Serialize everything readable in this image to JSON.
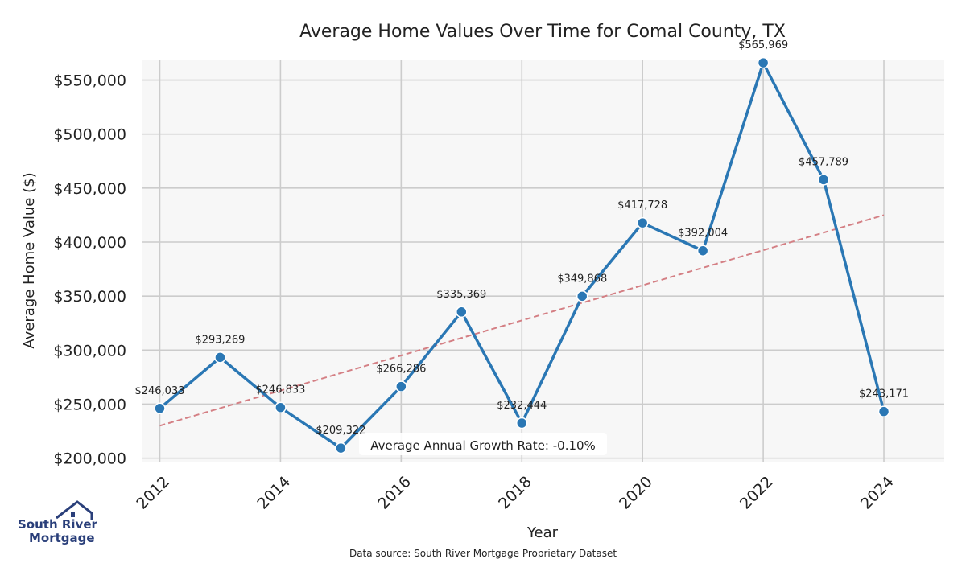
{
  "chart_data": {
    "type": "line",
    "title": "Average Home Values Over Time for Comal County, TX",
    "xlabel": "Year",
    "ylabel": "Average Home Value ($)",
    "x": [
      2012,
      2013,
      2014,
      2015,
      2016,
      2017,
      2018,
      2019,
      2020,
      2021,
      2022,
      2023,
      2024
    ],
    "values": [
      246033,
      293269,
      246833,
      209322,
      266286,
      335369,
      232444,
      349868,
      417728,
      392004,
      565969,
      457789,
      243171
    ],
    "point_labels": [
      "$246,033",
      "$293,269",
      "$246,833",
      "$209,322",
      "$266,286",
      "$335,369",
      "$232,444",
      "$349,868",
      "$417,728",
      "$392,004",
      "$565,969",
      "$457,789",
      "$243,171"
    ],
    "xticks": [
      "2012",
      "2014",
      "2016",
      "2018",
      "2020",
      "2022",
      "2024"
    ],
    "yticks": [
      200000,
      250000,
      300000,
      350000,
      400000,
      450000,
      500000,
      550000
    ],
    "ytick_labels": [
      "$200,000",
      "$250,000",
      "$300,000",
      "$350,000",
      "$400,000",
      "$450,000",
      "$500,000",
      "$550,000"
    ],
    "xlim": [
      2011.7,
      2025.0
    ],
    "ylim": [
      196000,
      569000
    ],
    "trendline": {
      "x": [
        2012,
        2024
      ],
      "y": [
        230000,
        425000
      ]
    },
    "annotation": "Average Annual Growth Rate: -0.10%",
    "grid": true,
    "colors": {
      "line": "#2a77b4",
      "marker": "#2a77b4",
      "trend": "#d47f84",
      "plot_bg": "#f7f7f7",
      "grid": "#cccccc"
    }
  },
  "logo": {
    "line1": "South River",
    "line2": "Mortgage"
  },
  "source": "Data source: South River Mortgage Proprietary Dataset"
}
